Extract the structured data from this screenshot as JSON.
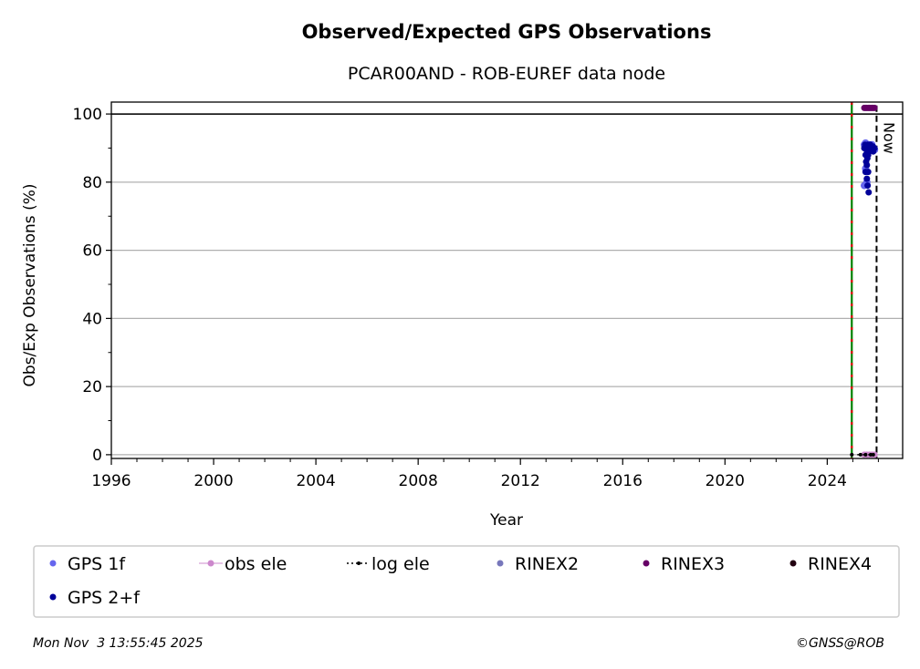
{
  "chart_data": {
    "type": "scatter",
    "title": "Observed/Expected GPS Observations",
    "subtitle": "PCAR00AND - ROB-EUREF data node",
    "xlabel": "Year",
    "ylabel": "Obs/Exp Observations (%)",
    "xlim": [
      1996,
      2026.95
    ],
    "ylim": [
      -1.1,
      103.5
    ],
    "xticks": [
      1996,
      2000,
      2004,
      2008,
      2012,
      2016,
      2020,
      2024
    ],
    "yticks": [
      0,
      20,
      40,
      60,
      80,
      100
    ],
    "grid": "horizontal",
    "hline": 100,
    "vlines": [
      {
        "x": 2024.96,
        "style": "green-red-dashed"
      },
      {
        "x": 2025.93,
        "style": "black-dashed",
        "label": "Now"
      }
    ],
    "series": [
      {
        "name": "GPS 1f",
        "color": "#6666ee",
        "x": [
          2025.45,
          2025.5,
          2025.55,
          2025.6,
          2025.65,
          2025.7,
          2025.75,
          2025.8,
          2025.85,
          2025.5,
          2025.55,
          2025.45
        ],
        "y": [
          91,
          91.5,
          91,
          90.5,
          91,
          90.5,
          91,
          90,
          89.5,
          84,
          80,
          79
        ]
      },
      {
        "name": "GPS 2+f",
        "color": "#000099",
        "x": [
          2025.45,
          2025.48,
          2025.5,
          2025.53,
          2025.55,
          2025.58,
          2025.6,
          2025.63,
          2025.65,
          2025.68,
          2025.7,
          2025.73,
          2025.75,
          2025.78,
          2025.8,
          2025.83,
          2025.85,
          2025.5,
          2025.52,
          2025.55,
          2025.57,
          2025.6,
          2025.5,
          2025.55,
          2025.58,
          2025.62,
          2025.6
        ],
        "y": [
          90,
          91,
          90.5,
          89.5,
          90,
          91,
          89,
          90,
          90.5,
          91,
          90,
          89.5,
          90,
          90.5,
          89,
          90,
          90,
          88,
          86,
          85,
          87,
          83,
          83,
          81,
          79,
          77,
          88
        ]
      },
      {
        "name": "RINEX3",
        "color": "#660066",
        "x": [
          2025.45,
          2025.5,
          2025.55,
          2025.6,
          2025.65,
          2025.7,
          2025.75,
          2025.8,
          2025.85
        ],
        "y": [
          101.8,
          101.8,
          101.8,
          101.8,
          101.8,
          101.8,
          101.8,
          101.8,
          101.8
        ]
      },
      {
        "name": "obs ele",
        "color": "#cc88cc",
        "x": [
          2025.45,
          2025.55,
          2025.65,
          2025.75,
          2025.85
        ],
        "y": [
          0,
          0,
          0,
          0,
          0
        ]
      },
      {
        "name": "log ele",
        "color": "#000000",
        "x": [
          2024.96,
          2025.3,
          2025.5,
          2025.7,
          2025.8
        ],
        "y": [
          0,
          0,
          0,
          0,
          0
        ]
      }
    ],
    "legend": {
      "placement": "bottom",
      "entries": [
        {
          "label": "GPS 1f",
          "color": "#6666ee",
          "marker": "dot"
        },
        {
          "label": "obs ele",
          "color": "#cc88cc",
          "marker": "line-dot"
        },
        {
          "label": "log ele",
          "color": "#000000",
          "marker": "dotted-line-dot"
        },
        {
          "label": "RINEX2",
          "color": "#7777bb",
          "marker": "dot"
        },
        {
          "label": "RINEX3",
          "color": "#660066",
          "marker": "dot"
        },
        {
          "label": "RINEX4",
          "color": "#220011",
          "marker": "dot"
        },
        {
          "label": "GPS 2+f",
          "color": "#000099",
          "marker": "dot"
        }
      ]
    }
  },
  "footer": {
    "timestamp": "Mon Nov  3 13:55:45 2025",
    "credit": "©GNSS@ROB"
  }
}
